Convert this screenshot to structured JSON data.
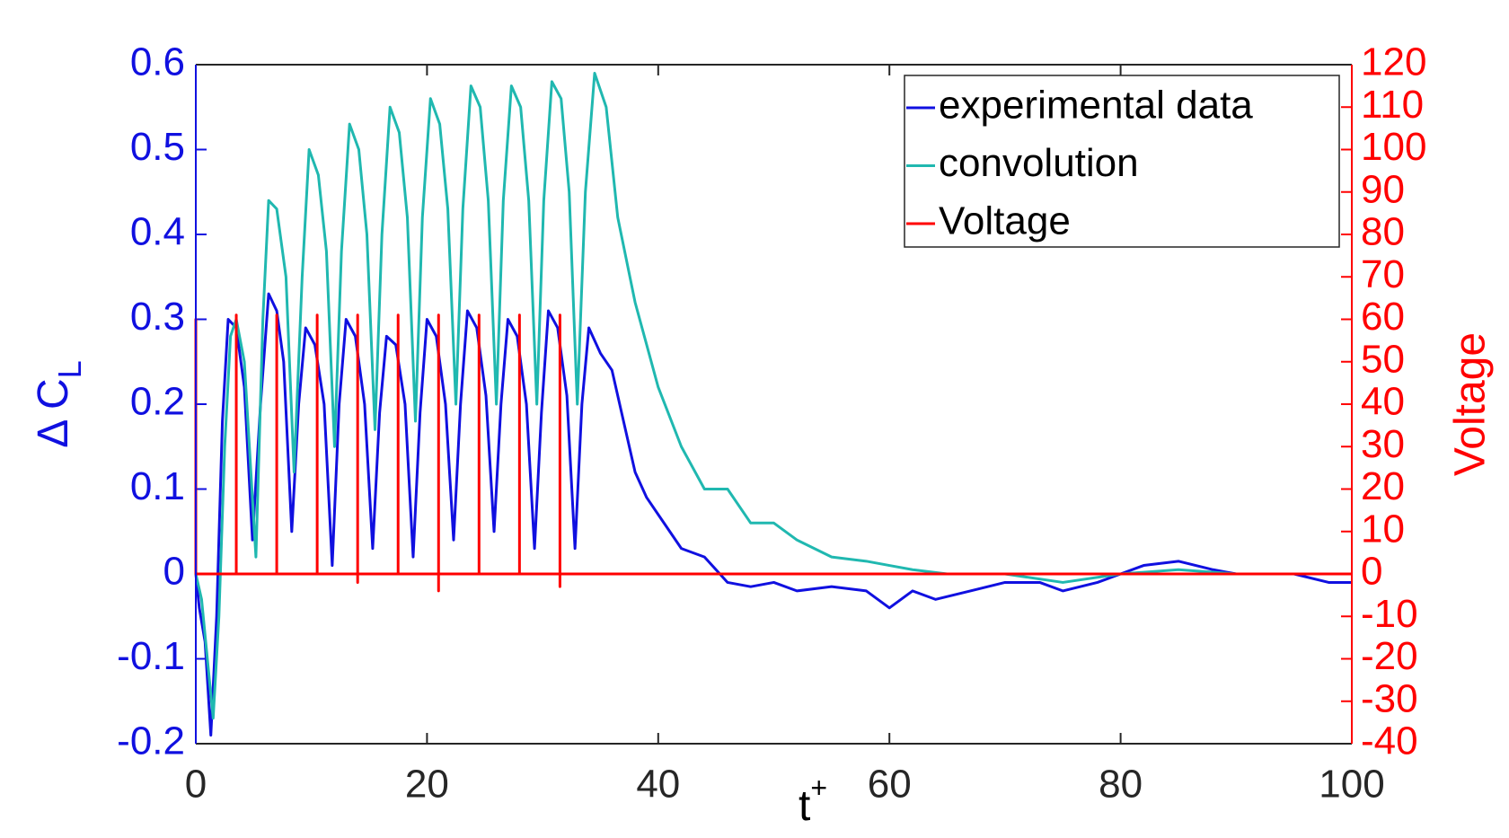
{
  "chart_data": {
    "type": "line",
    "xlabel": "t",
    "xlabel_sup": "+",
    "ylabel": "Δ C",
    "ylabel_sub": "L",
    "y2label": "Voltage",
    "xlim": [
      0,
      100
    ],
    "xticks": [
      0,
      20,
      40,
      60,
      80,
      100
    ],
    "ylim": [
      -0.2,
      0.6
    ],
    "yticks": [
      -0.2,
      -0.1,
      0,
      0.1,
      0.2,
      0.3,
      0.4,
      0.5,
      0.6
    ],
    "y2lim": [
      -40,
      120
    ],
    "y2ticks": [
      -40,
      -30,
      -20,
      -10,
      0,
      10,
      20,
      30,
      40,
      50,
      60,
      70,
      80,
      90,
      100,
      110,
      120
    ],
    "ycolor": "#1010e0",
    "y2color": "#ff0000",
    "legend": "upper right",
    "series": [
      {
        "name": "experimental data",
        "color": "#1010e0",
        "x": [
          0,
          0.3,
          0.8,
          1.3,
          1.8,
          2.3,
          2.8,
          3.5,
          4.2,
          4.9,
          5.6,
          6.3,
          7,
          7.6,
          8.3,
          8.9,
          9.5,
          10.3,
          11.1,
          11.8,
          12.4,
          13,
          13.8,
          14.6,
          15.3,
          15.9,
          16.5,
          17.3,
          18.1,
          18.8,
          19.4,
          20,
          20.8,
          21.6,
          22.3,
          22.9,
          23.5,
          24.3,
          25.1,
          25.8,
          26.4,
          27,
          27.8,
          28.6,
          29.3,
          29.9,
          30.5,
          31.3,
          32.1,
          32.8,
          33.4,
          34,
          35,
          36,
          37,
          38,
          39,
          40,
          42,
          44,
          46,
          48,
          50,
          52,
          55,
          58,
          60,
          62,
          64,
          67,
          70,
          73,
          75,
          78,
          80,
          82,
          85,
          88,
          90,
          93,
          95,
          98,
          100
        ],
        "values": [
          0,
          -0.04,
          -0.08,
          -0.19,
          -0.05,
          0.18,
          0.3,
          0.29,
          0.22,
          0.04,
          0.2,
          0.33,
          0.31,
          0.25,
          0.05,
          0.2,
          0.29,
          0.27,
          0.2,
          0.01,
          0.2,
          0.3,
          0.28,
          0.2,
          0.03,
          0.19,
          0.28,
          0.27,
          0.2,
          0.02,
          0.19,
          0.3,
          0.28,
          0.2,
          0.04,
          0.2,
          0.31,
          0.29,
          0.21,
          0.05,
          0.2,
          0.3,
          0.28,
          0.2,
          0.03,
          0.19,
          0.31,
          0.29,
          0.21,
          0.03,
          0.2,
          0.29,
          0.26,
          0.24,
          0.18,
          0.12,
          0.09,
          0.07,
          0.03,
          0.02,
          -0.01,
          -0.015,
          -0.01,
          -0.02,
          -0.015,
          -0.02,
          -0.04,
          -0.02,
          -0.03,
          -0.02,
          -0.01,
          -0.01,
          -0.02,
          -0.01,
          0,
          0.01,
          0.015,
          0.005,
          0,
          0,
          0,
          -0.01,
          -0.01
        ]
      },
      {
        "name": "convolution",
        "color": "#20b8b0",
        "x": [
          0,
          0.5,
          1,
          1.5,
          2,
          2.5,
          3,
          3.5,
          4.2,
          5.2,
          5.8,
          6.3,
          7,
          7.8,
          8.5,
          9.2,
          9.8,
          10.6,
          11.3,
          12,
          12.6,
          13.3,
          14.1,
          14.8,
          15.5,
          16.1,
          16.8,
          17.6,
          18.3,
          19,
          19.6,
          20.3,
          21.1,
          21.8,
          22.5,
          23.1,
          23.8,
          24.6,
          25.3,
          26,
          26.6,
          27.3,
          28.1,
          28.8,
          29.5,
          30.1,
          30.8,
          31.6,
          32.3,
          33,
          33.7,
          34.5,
          35.5,
          36.5,
          38,
          40,
          42,
          44,
          46,
          48,
          50,
          52,
          55,
          58,
          60,
          62,
          65,
          70,
          75,
          80,
          85,
          90,
          95,
          100
        ],
        "values": [
          0,
          -0.03,
          -0.1,
          -0.17,
          -0.05,
          0.15,
          0.28,
          0.3,
          0.25,
          0.02,
          0.3,
          0.44,
          0.43,
          0.35,
          0.12,
          0.35,
          0.5,
          0.47,
          0.38,
          0.15,
          0.38,
          0.53,
          0.5,
          0.4,
          0.17,
          0.4,
          0.55,
          0.52,
          0.42,
          0.18,
          0.42,
          0.56,
          0.53,
          0.43,
          0.2,
          0.43,
          0.575,
          0.55,
          0.44,
          0.2,
          0.44,
          0.575,
          0.55,
          0.44,
          0.2,
          0.44,
          0.58,
          0.56,
          0.45,
          0.2,
          0.45,
          0.59,
          0.55,
          0.42,
          0.32,
          0.22,
          0.15,
          0.1,
          0.1,
          0.06,
          0.06,
          0.04,
          0.02,
          0.015,
          0.01,
          0.005,
          0,
          0,
          -0.01,
          0,
          0.005,
          0,
          0,
          0
        ]
      },
      {
        "name": "Voltage",
        "color": "#ff0000",
        "axis": "y2",
        "x": [
          0,
          0,
          0,
          3.5,
          3.5,
          3.5,
          7,
          7,
          7,
          10.5,
          10.5,
          10.5,
          14,
          14,
          14,
          14,
          17.5,
          17.5,
          17.5,
          21,
          21,
          21,
          21,
          24.5,
          24.5,
          24.5,
          28,
          28,
          28,
          31.5,
          31.5,
          31.5,
          31.5,
          100
        ],
        "values": [
          0,
          60,
          0,
          0,
          61,
          0,
          0,
          61,
          0,
          0,
          61,
          0,
          0,
          61,
          -2,
          0,
          0,
          61,
          0,
          0,
          61,
          -4,
          0,
          0,
          61,
          0,
          0,
          61,
          0,
          0,
          61,
          -3,
          0,
          0
        ]
      }
    ]
  }
}
